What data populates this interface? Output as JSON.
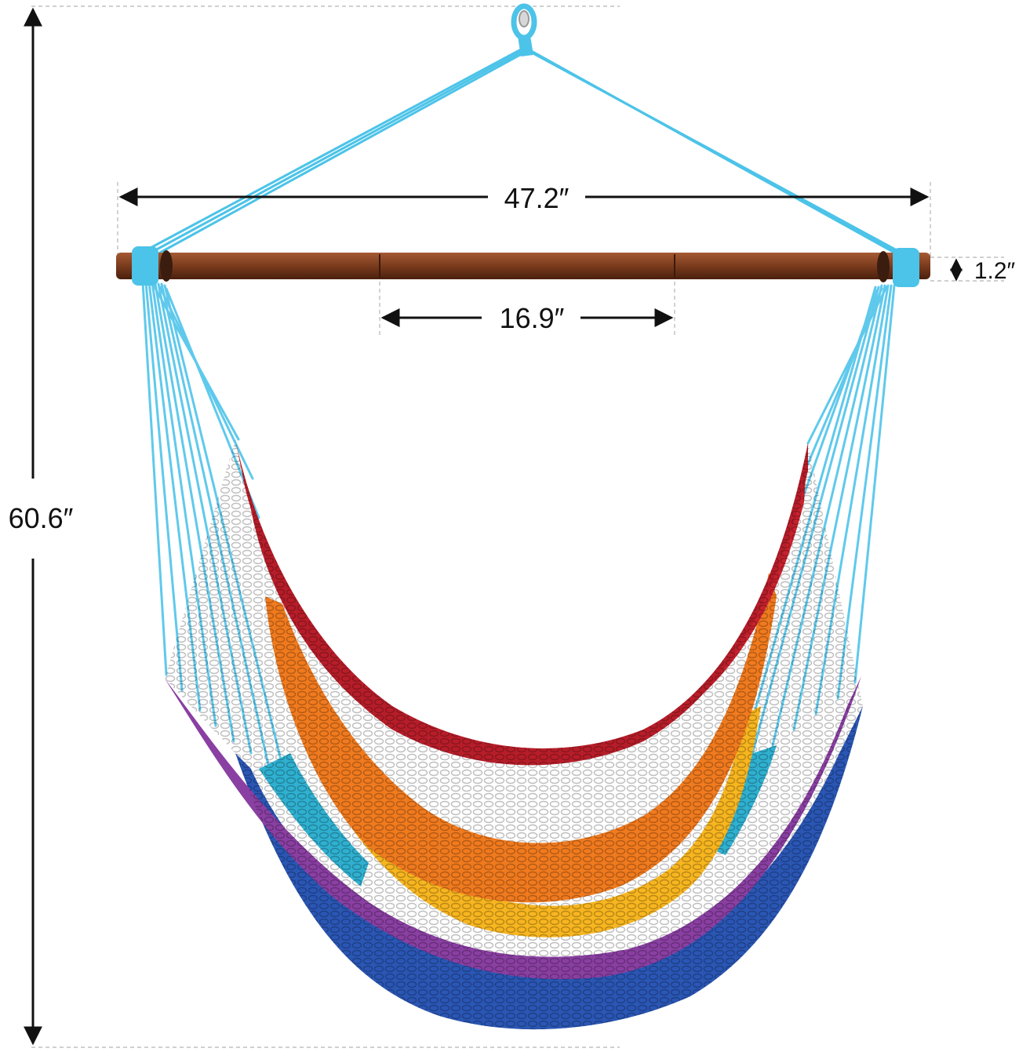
{
  "dimensions": {
    "total_height": "60.6″",
    "bar_length": "47.2″",
    "spreader_spacing": "16.9″",
    "bar_diameter": "1.2″"
  },
  "colors": {
    "rope_hanger": "#4cc3e8",
    "spreader_bar": "#7a3b1d",
    "stripe_red": "#c8222e",
    "stripe_orange": "#f07a1e",
    "stripe_yellow": "#f7b51f",
    "stripe_teal": "#2fb0d0",
    "stripe_purple": "#8a3fa2",
    "stripe_blue": "#2a56b4",
    "dimension_line": "#111111",
    "guide_line": "#b5b5b5"
  }
}
